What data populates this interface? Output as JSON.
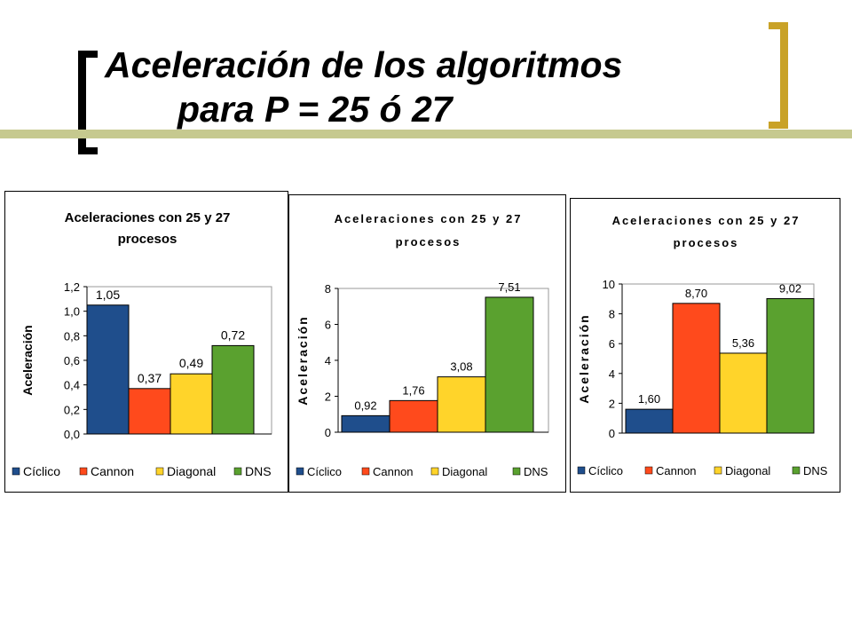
{
  "slide": {
    "title_line1": "Aceleración de los algoritmos",
    "title_line2": "para P = 25 ó 27",
    "colors": {
      "bracket_left": "#000000",
      "bracket_right": "#c9a227",
      "rule": "#c6c98f"
    }
  },
  "chart_data": [
    {
      "type": "bar",
      "title_lines": [
        "Aceleraciones con 25 y 27",
        "procesos"
      ],
      "ylabel": "Aceleración",
      "categories": [
        ""
      ],
      "series": [
        {
          "name": "Cíclico",
          "values": [
            1.05
          ],
          "label": "1,05",
          "color": "#1f4e8c"
        },
        {
          "name": "Cannon",
          "values": [
            0.37
          ],
          "label": "0,37",
          "color": "#ff4a1c"
        },
        {
          "name": "Diagonal",
          "values": [
            0.49
          ],
          "label": "0,49",
          "color": "#ffd42a"
        },
        {
          "name": "DNS",
          "values": [
            0.72
          ],
          "label": "0,72",
          "color": "#5aa12f"
        }
      ],
      "ylim": [
        0,
        1.2
      ],
      "yticks": [
        0,
        0.2,
        0.4,
        0.6,
        0.8,
        1.0,
        1.2
      ],
      "ytick_labels": [
        "0,0",
        "0,2",
        "0,4",
        "0,6",
        "0,8",
        "1,0",
        "1,2"
      ],
      "grid": false,
      "legend": "bottom"
    },
    {
      "type": "bar",
      "title_lines": [
        "Aceleraciones con 25 y 27",
        "procesos"
      ],
      "ylabel": "Aceleración",
      "categories": [
        ""
      ],
      "series": [
        {
          "name": "Cíclico",
          "values": [
            0.92
          ],
          "label": "0,92",
          "color": "#1f4e8c"
        },
        {
          "name": "Cannon",
          "values": [
            1.76
          ],
          "label": "1,76",
          "color": "#ff4a1c"
        },
        {
          "name": "Diagonal",
          "values": [
            3.08
          ],
          "label": "3,08",
          "color": "#ffd42a"
        },
        {
          "name": "DNS",
          "values": [
            7.51
          ],
          "label": "7,51",
          "color": "#5aa12f"
        }
      ],
      "ylim": [
        0,
        8
      ],
      "yticks": [
        0,
        2,
        4,
        6,
        8
      ],
      "ytick_labels": [
        "0",
        "2",
        "4",
        "6",
        "8"
      ],
      "grid": false,
      "legend": "bottom"
    },
    {
      "type": "bar",
      "title_lines": [
        "Aceleraciones con 25 y 27",
        "procesos"
      ],
      "ylabel": "Aceleración",
      "categories": [
        ""
      ],
      "series": [
        {
          "name": "Cíclico",
          "values": [
            1.6
          ],
          "label": "1,60",
          "color": "#1f4e8c"
        },
        {
          "name": "Cannon",
          "values": [
            8.7
          ],
          "label": "8,70",
          "color": "#ff4a1c"
        },
        {
          "name": "Diagonal",
          "values": [
            5.36
          ],
          "label": "5,36",
          "color": "#ffd42a"
        },
        {
          "name": "DNS",
          "values": [
            9.02
          ],
          "label": "9,02",
          "color": "#5aa12f"
        }
      ],
      "ylim": [
        0,
        10
      ],
      "yticks": [
        0,
        2,
        4,
        6,
        8,
        10
      ],
      "ytick_labels": [
        "0",
        "2",
        "4",
        "6",
        "8",
        "10"
      ],
      "grid": false,
      "legend": "bottom"
    }
  ]
}
